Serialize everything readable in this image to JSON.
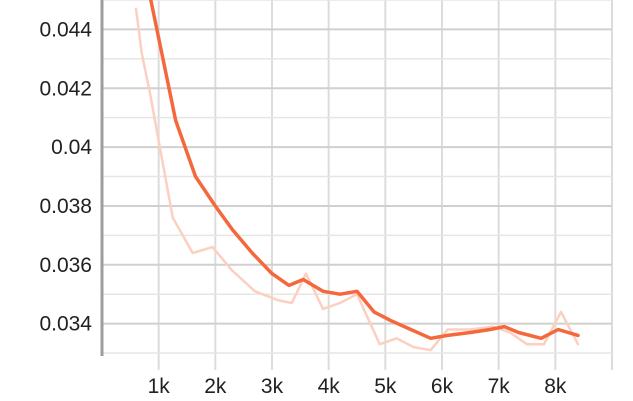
{
  "chart_data": {
    "type": "line",
    "title": "",
    "xlabel": "",
    "ylabel": "",
    "xlim": [
      0,
      9000
    ],
    "ylim": [
      0.0329,
      0.045
    ],
    "grid": true,
    "x_ticks": [
      {
        "value": 1000,
        "label": "1k"
      },
      {
        "value": 2000,
        "label": "2k"
      },
      {
        "value": 3000,
        "label": "3k"
      },
      {
        "value": 4000,
        "label": "4k"
      },
      {
        "value": 5000,
        "label": "5k"
      },
      {
        "value": 6000,
        "label": "6k"
      },
      {
        "value": 7000,
        "label": "7k"
      },
      {
        "value": 8000,
        "label": "8k"
      }
    ],
    "y_ticks": [
      {
        "value": 0.034,
        "label": "0.034"
      },
      {
        "value": 0.036,
        "label": "0.036"
      },
      {
        "value": 0.038,
        "label": "0.038"
      },
      {
        "value": 0.04,
        "label": "0.04"
      },
      {
        "value": 0.042,
        "label": "0.042"
      },
      {
        "value": 0.044,
        "label": "0.044"
      }
    ],
    "series": [
      {
        "role": "raw",
        "color": "#fbd0c0",
        "x": [
          600,
          700,
          850,
          1000,
          1250,
          1600,
          1950,
          2300,
          2700,
          3100,
          3350,
          3600,
          3900,
          4200,
          4500,
          4900,
          5200,
          5500,
          5800,
          6100,
          6500,
          6900,
          7200,
          7500,
          7800,
          8100,
          8400
        ],
        "y": [
          0.0447,
          0.0432,
          0.0418,
          0.0402,
          0.0376,
          0.0364,
          0.0366,
          0.0358,
          0.0351,
          0.0348,
          0.0347,
          0.0357,
          0.0345,
          0.0347,
          0.035,
          0.0333,
          0.0335,
          0.0332,
          0.0331,
          0.0338,
          0.0338,
          0.0339,
          0.0337,
          0.0333,
          0.0333,
          0.0344,
          0.0333
        ]
      },
      {
        "role": "smoothed",
        "color": "#f4683c",
        "x": [
          850,
          1000,
          1300,
          1650,
          2000,
          2300,
          2650,
          3000,
          3300,
          3550,
          3900,
          4200,
          4500,
          4800,
          5100,
          5450,
          5800,
          6100,
          6500,
          6850,
          7100,
          7350,
          7750,
          8050,
          8400
        ],
        "y": [
          0.0451,
          0.0437,
          0.0409,
          0.039,
          0.038,
          0.0372,
          0.0364,
          0.0357,
          0.0353,
          0.0355,
          0.0351,
          0.035,
          0.0351,
          0.0344,
          0.0341,
          0.0338,
          0.0335,
          0.0336,
          0.0337,
          0.0338,
          0.0339,
          0.0337,
          0.0335,
          0.0338,
          0.0336
        ]
      }
    ]
  }
}
